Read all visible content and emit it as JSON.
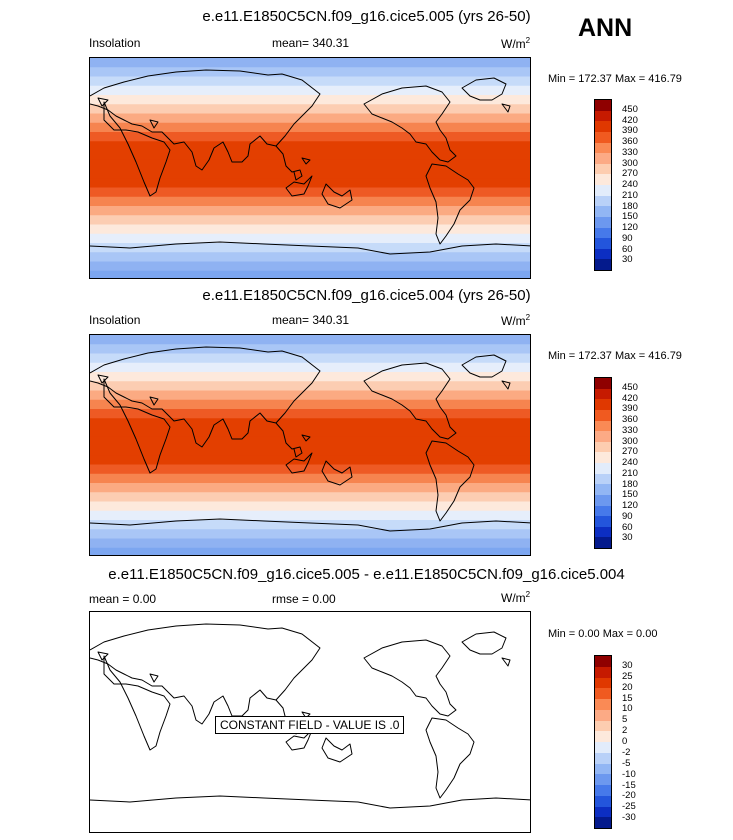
{
  "season": "ANN",
  "panels": [
    {
      "title": "e.e11.E1850C5CN.f09_g16.cice5.005 (yrs 26-50)",
      "left_label": "Insolation",
      "center_label": "mean= 340.31",
      "units": "W/m",
      "units_sup": "2",
      "minmax": "Min = 172.37 Max = 416.79",
      "colorbar_ticks": [
        "450",
        "420",
        "390",
        "360",
        "330",
        "300",
        "270",
        "240",
        "210",
        "180",
        "150",
        "120",
        "90",
        "60",
        "30"
      ]
    },
    {
      "title": "e.e11.E1850C5CN.f09_g16.cice5.004 (yrs 26-50)",
      "left_label": "Insolation",
      "center_label": "mean= 340.31",
      "units": "W/m",
      "units_sup": "2",
      "minmax": "Min = 172.37 Max = 416.79",
      "colorbar_ticks": [
        "450",
        "420",
        "390",
        "360",
        "330",
        "300",
        "270",
        "240",
        "210",
        "180",
        "150",
        "120",
        "90",
        "60",
        "30"
      ]
    },
    {
      "title": "e.e11.E1850C5CN.f09_g16.cice5.005 - e.e11.E1850C5CN.f09_g16.cice5.004",
      "left_label": "mean =   0.00",
      "center_label": "rmse =   0.00",
      "units": "W/m",
      "units_sup": "2",
      "minmax": "Min =   0.00 Max =   0.00",
      "constant_field_label": "CONSTANT FIELD - VALUE IS .0",
      "colorbar_ticks": [
        "30",
        "25",
        "20",
        "15",
        "10",
        "5",
        "2",
        "0",
        "-2",
        "-5",
        "-10",
        "-15",
        "-20",
        "-25",
        "-30"
      ]
    }
  ],
  "colors": {
    "colorbar": [
      "#8f0000",
      "#c61a00",
      "#e03800",
      "#f05a20",
      "#fa8a55",
      "#fcaa85",
      "#fdcdb0",
      "#fde9dc",
      "#e2ecfb",
      "#b9d1f8",
      "#92b6f4",
      "#6c98ef",
      "#4679ea",
      "#2355dc",
      "#0c2ec2",
      "#041a8c"
    ],
    "insolation_bands_north_to_south": [
      "#8fb2f2",
      "#a9c6f6",
      "#c6dbf9",
      "#e6eefb",
      "#fde9dc",
      "#fccdb2",
      "#fbaa82",
      "#f6844f",
      "#ee5a24",
      "#e33f00",
      "#e33f00",
      "#e33f00",
      "#e33f00",
      "#e33f00",
      "#ee5a24",
      "#f6844f",
      "#fbaa82",
      "#fccdb2",
      "#fde9dc",
      "#e6eefb",
      "#c6dbf9",
      "#a9c6f6",
      "#8fb2f2",
      "#7ca6f0"
    ]
  }
}
